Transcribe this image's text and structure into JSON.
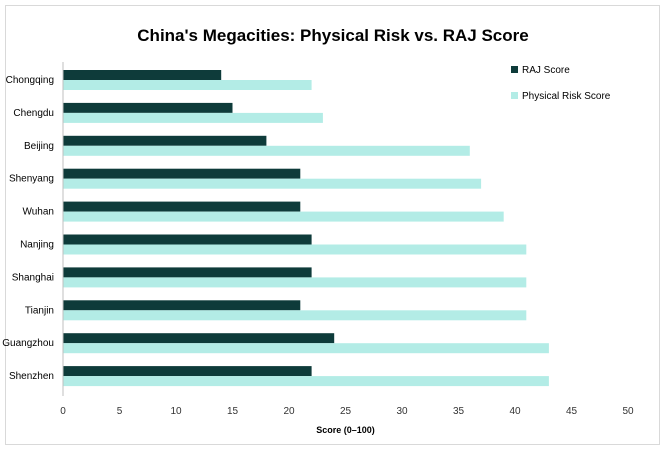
{
  "chart_data": {
    "type": "bar",
    "orientation": "horizontal",
    "title": "China's Megacities: Physical Risk vs. RAJ Score",
    "xlabel": "Score (0–100)",
    "ylabel": "",
    "xlim": [
      0,
      50
    ],
    "xticks": [
      0,
      5,
      10,
      15,
      20,
      25,
      30,
      35,
      40,
      45,
      50
    ],
    "grid": false,
    "legend_position": "top-right",
    "categories": [
      "Chongqing",
      "Chengdu",
      "Beijing",
      "Shenyang",
      "Wuhan",
      "Nanjing",
      "Shanghai",
      "Tianjin",
      "Guangzhou",
      "Shenzhen"
    ],
    "series": [
      {
        "name": "RAJ Score",
        "color": "#0e3b3a",
        "values": [
          14,
          15,
          18,
          21,
          21,
          22,
          22,
          21,
          24,
          22
        ]
      },
      {
        "name": "Physical Risk Score",
        "color": "#b3ece6",
        "values": [
          22,
          23,
          36,
          37,
          39,
          41,
          41,
          41,
          43,
          43
        ]
      }
    ]
  }
}
